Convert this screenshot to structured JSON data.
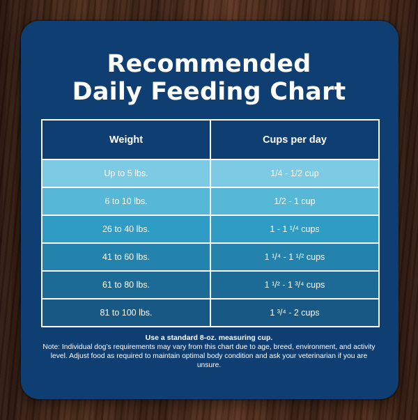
{
  "title": {
    "line1": "Recommended",
    "line2": "Daily Feeding Chart"
  },
  "table": {
    "headers": [
      "Weight",
      "Cups per day"
    ],
    "rows": [
      {
        "weight": "Up to 5 lbs.",
        "cups": "1/4 - 1/2 cup",
        "color": "#7ccae3"
      },
      {
        "weight": "6 to 10 lbs.",
        "cups": "1/2 - 1 cup",
        "color": "#57b7d7"
      },
      {
        "weight": "26 to 40 lbs.",
        "cups": "1 - 1 ¹/⁴ cups",
        "color": "#2e9cc4"
      },
      {
        "weight": "41 to 60 lbs.",
        "cups": "1 ¹/⁴ - 1 ¹/² cups",
        "color": "#2483ad"
      },
      {
        "weight": "61 to 80 lbs.",
        "cups": "1 ¹/² - 1 ³/⁴ cups",
        "color": "#1c6a96"
      },
      {
        "weight": "81 to 100 lbs.",
        "cups": "1 ³/⁴ - 2 cups",
        "color": "#175885"
      }
    ]
  },
  "note": {
    "title": "Use a standard 8-oz. measuring cup.",
    "text": "Note: Individual dog’s requirements may vary from this chart due to age, breed, environment, and activity level. Adjust food as required to maintain optimal body condition and ask your veterinarian if you are unsure."
  },
  "colors": {
    "card": "#0f3e73",
    "background_wood": "#4a2a18"
  }
}
